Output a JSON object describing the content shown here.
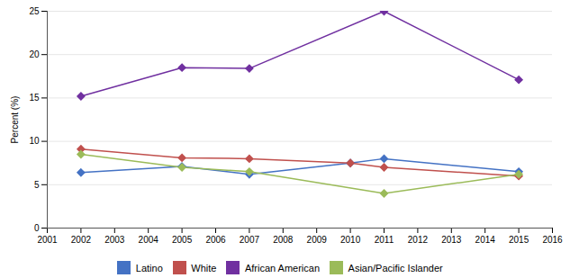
{
  "chart_data": {
    "type": "line",
    "ylabel": "Percent (%)",
    "xlim": [
      2001,
      2016
    ],
    "ylim": [
      0,
      25
    ],
    "xticks": [
      2001,
      2002,
      2003,
      2004,
      2005,
      2006,
      2007,
      2008,
      2009,
      2010,
      2011,
      2012,
      2013,
      2014,
      2015,
      2016
    ],
    "yticks": [
      0,
      5,
      10,
      15,
      20,
      25
    ],
    "grid": true,
    "legend": "bottom",
    "marker": "diamond",
    "series": [
      {
        "name": "Latino",
        "color": "#4472C4",
        "x": [
          2002,
          2005,
          2007,
          2010,
          2011,
          2015
        ],
        "values": [
          6.4,
          7.1,
          6.2,
          7.5,
          8.0,
          6.5
        ]
      },
      {
        "name": "White",
        "color": "#C0504D",
        "x": [
          2002,
          2005,
          2007,
          2010,
          2011,
          2015
        ],
        "values": [
          9.1,
          8.1,
          8.0,
          7.5,
          7.0,
          6.0
        ]
      },
      {
        "name": "African American",
        "color": "#7030A0",
        "x": [
          2002,
          2005,
          2007,
          2011,
          2015
        ],
        "values": [
          15.2,
          18.5,
          18.4,
          25.0,
          17.1
        ]
      },
      {
        "name": "Asian/Pacific Islander",
        "color": "#9BBB59",
        "x": [
          2002,
          2005,
          2007,
          2011,
          2015
        ],
        "values": [
          8.5,
          7.0,
          6.5,
          4.0,
          6.2
        ]
      }
    ]
  }
}
